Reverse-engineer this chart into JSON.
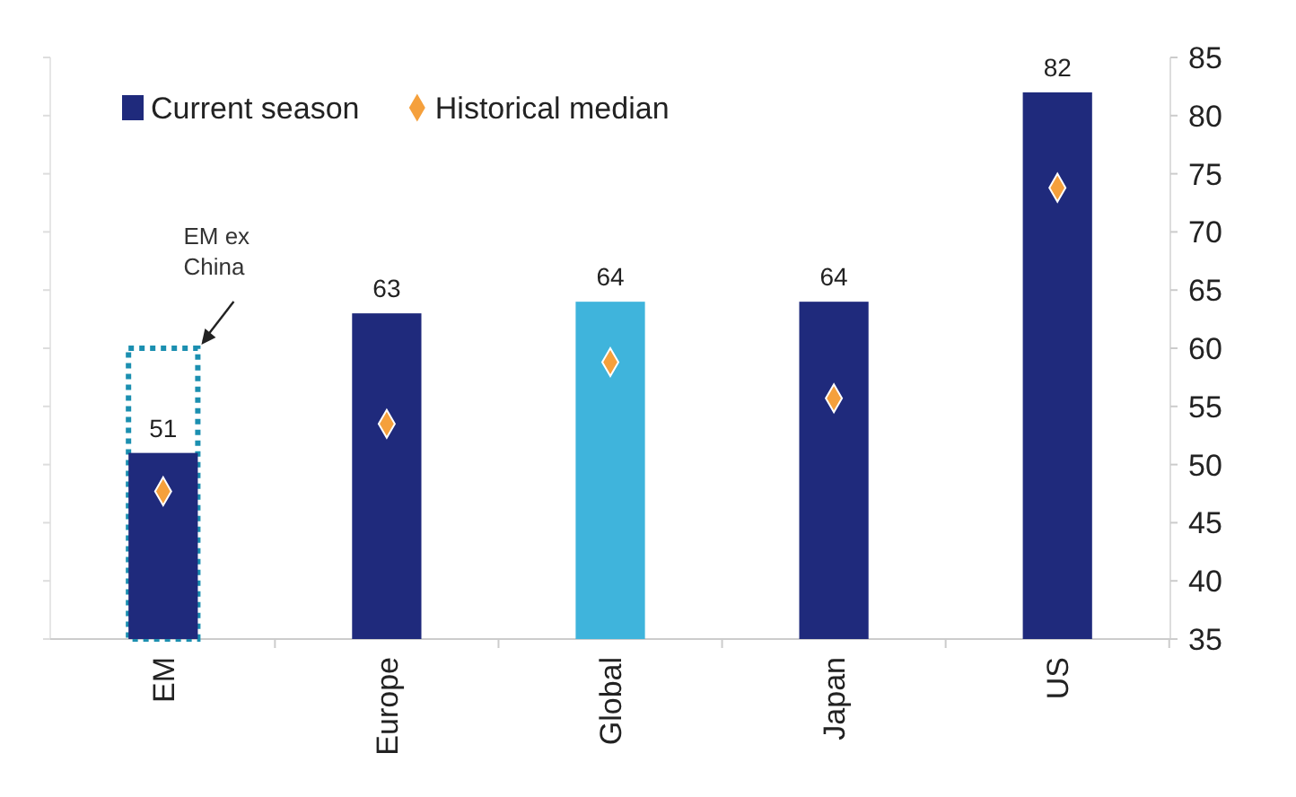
{
  "chart_data": {
    "type": "bar",
    "categories": [
      "EM",
      "Europe",
      "Global",
      "Japan",
      "US"
    ],
    "series": [
      {
        "name": "EM ex China",
        "type": "bar",
        "color": "#1b8fb0",
        "line_style": "dotted",
        "values": [
          60,
          null,
          null,
          null,
          null
        ]
      },
      {
        "name": "Current season",
        "color": "#1f2a7c",
        "colors": [
          "#1f2a7c",
          "#1f2a7c",
          "#3fb4dc",
          "#1f2a7c",
          "#1f2a7c"
        ],
        "values": [
          51,
          63,
          64,
          64,
          82
        ],
        "value_labels": [
          "51",
          "63",
          "64",
          "64",
          "82"
        ]
      },
      {
        "name": "Historical median",
        "type": "scatter",
        "color": "#f5a03c",
        "marker": "diamond",
        "values": [
          47.7,
          53.5,
          58.8,
          55.7,
          73.8
        ]
      }
    ],
    "ylim": [
      35,
      85
    ],
    "yticks": [
      35,
      40,
      45,
      50,
      55,
      60,
      65,
      70,
      75,
      80,
      85
    ],
    "legend": "top left",
    "grid": false
  }
}
